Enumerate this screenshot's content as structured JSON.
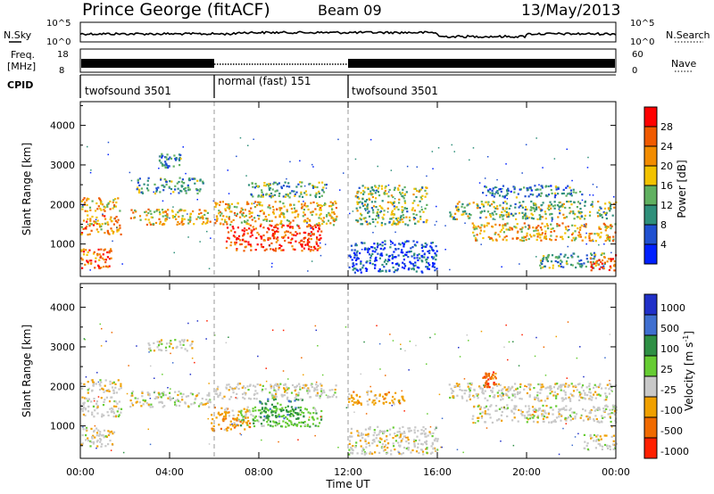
{
  "header": {
    "station": "Prince George (fitACF)",
    "beam": "Beam 09",
    "date": "13/May/2013"
  },
  "noise_panel": {
    "left_label": "N.Sky",
    "right_label": "N.Search",
    "left_ticks": [
      "10^5",
      "10^0"
    ],
    "right_ticks": [
      "10^5",
      "10^0"
    ]
  },
  "freq_panel": {
    "left_label_line1": "Freq.",
    "left_label_line2": "[MHz]",
    "right_label": "Nave",
    "left_ticks": [
      "18",
      "8"
    ],
    "right_ticks": [
      "60",
      "0"
    ]
  },
  "cpid": {
    "label": "CPID",
    "segments": [
      {
        "start_hour": 0,
        "end_hour": 6,
        "text": "twofsound 3501"
      },
      {
        "start_hour": 6,
        "end_hour": 12,
        "text": "normal (fast) 151"
      },
      {
        "start_hour": 12,
        "end_hour": 24,
        "text": "twofsound 3501"
      }
    ]
  },
  "time_axis": {
    "label": "Time UT",
    "range_hours": [
      0,
      24
    ],
    "ticks": [
      {
        "hour": 0,
        "label": "00:00"
      },
      {
        "hour": 4,
        "label": "04:00"
      },
      {
        "hour": 8,
        "label": "08:00"
      },
      {
        "hour": 12,
        "label": "12:00"
      },
      {
        "hour": 16,
        "label": "16:00"
      },
      {
        "hour": 20,
        "label": "20:00"
      },
      {
        "hour": 24,
        "label": "00:00"
      }
    ],
    "mode_change_markers_hours": [
      6,
      12
    ]
  },
  "chart_data": [
    {
      "type": "heatmap",
      "name": "power",
      "ylabel": "Slant Range [km]",
      "ylim": [
        180,
        4600
      ],
      "yticks": [
        1000,
        2000,
        3000,
        4000
      ],
      "colorbar": {
        "label": "Power [dB]",
        "range": [
          0,
          32
        ],
        "ticks": [
          "4",
          "8",
          "12",
          "16",
          "20",
          "24",
          "28"
        ],
        "colors": [
          "#0020ff",
          "#2050d0",
          "#2f8f7a",
          "#60b060",
          "#f2c200",
          "#f28c00",
          "#f05a00",
          "#ff0000"
        ]
      },
      "bands": [
        {
          "t0": 0,
          "t1": 1.8,
          "r0": 1850,
          "r1": 2200,
          "level": 0.62
        },
        {
          "t0": 0,
          "t1": 1.8,
          "r0": 1250,
          "r1": 1750,
          "level": 0.68
        },
        {
          "t0": 0,
          "t1": 1.5,
          "r0": 400,
          "r1": 900,
          "level": 0.8
        },
        {
          "t0": 2.2,
          "t1": 5.8,
          "r0": 1500,
          "r1": 1900,
          "level": 0.6
        },
        {
          "t0": 2.5,
          "t1": 5.5,
          "r0": 2300,
          "r1": 2700,
          "level": 0.35
        },
        {
          "t0": 3.5,
          "t1": 4.5,
          "r0": 2950,
          "r1": 3300,
          "level": 0.3
        },
        {
          "t0": 6.0,
          "t1": 11.5,
          "r0": 1500,
          "r1": 2100,
          "level": 0.6
        },
        {
          "t0": 6.5,
          "t1": 10.8,
          "r0": 850,
          "r1": 1500,
          "level": 0.85
        },
        {
          "t0": 7.5,
          "t1": 11.0,
          "r0": 2200,
          "r1": 2600,
          "level": 0.4
        },
        {
          "t0": 12.3,
          "t1": 15.5,
          "r0": 1500,
          "r1": 2500,
          "level": 0.45
        },
        {
          "t0": 12.0,
          "t1": 16.0,
          "r0": 300,
          "r1": 1100,
          "level": 0.15
        },
        {
          "t0": 16.5,
          "t1": 24,
          "r0": 1650,
          "r1": 2100,
          "level": 0.45
        },
        {
          "t0": 17.5,
          "t1": 24,
          "r0": 1100,
          "r1": 1550,
          "level": 0.62
        },
        {
          "t0": 18.0,
          "t1": 22.5,
          "r0": 2200,
          "r1": 2500,
          "level": 0.3
        },
        {
          "t0": 20.5,
          "t1": 23.5,
          "r0": 400,
          "r1": 800,
          "level": 0.35
        },
        {
          "t0": 22.8,
          "t1": 24,
          "r0": 350,
          "r1": 750,
          "level": 0.85
        }
      ]
    },
    {
      "type": "heatmap",
      "name": "velocity",
      "ylabel": "Slant Range [km]",
      "ylim": [
        180,
        4600
      ],
      "yticks": [
        1000,
        2000,
        3000,
        4000
      ],
      "colorbar": {
        "label": "Velocity [m s^-1]",
        "ticks": [
          "1000",
          "500",
          "100",
          "25",
          "-25",
          "-100",
          "-500",
          "-1000"
        ],
        "colors": [
          "#2030c8",
          "#3f6fd0",
          "#2e8f44",
          "#66cc33",
          "#c8c8c8",
          "#f0a000",
          "#f06a00",
          "#ff2000"
        ]
      },
      "bands": [
        {
          "t0": 0,
          "t1": 1.8,
          "r0": 1850,
          "r1": 2200,
          "level": 4
        },
        {
          "t0": 0,
          "t1": 1.8,
          "r0": 1250,
          "r1": 1750,
          "level": 4
        },
        {
          "t0": 0,
          "t1": 1.5,
          "r0": 500,
          "r1": 1000,
          "level": 4
        },
        {
          "t0": 2.2,
          "t1": 5.8,
          "r0": 1500,
          "r1": 1900,
          "level": 4
        },
        {
          "t0": 3.0,
          "t1": 5.0,
          "r0": 2900,
          "r1": 3200,
          "level": 4
        },
        {
          "t0": 7.0,
          "t1": 10.8,
          "r0": 1000,
          "r1": 1500,
          "level": 3
        },
        {
          "t0": 8.0,
          "t1": 10.0,
          "r0": 1200,
          "r1": 1700,
          "level": 2
        },
        {
          "t0": 5.8,
          "t1": 7.6,
          "r0": 900,
          "r1": 1500,
          "level": 5
        },
        {
          "t0": 6.0,
          "t1": 11.5,
          "r0": 1700,
          "r1": 2100,
          "level": 4
        },
        {
          "t0": 12.0,
          "t1": 14.5,
          "r0": 1550,
          "r1": 1900,
          "level": 5
        },
        {
          "t0": 12.0,
          "t1": 16.0,
          "r0": 300,
          "r1": 1000,
          "level": 4
        },
        {
          "t0": 16.5,
          "t1": 24,
          "r0": 1650,
          "r1": 2100,
          "level": 4
        },
        {
          "t0": 17.5,
          "t1": 24,
          "r0": 1100,
          "r1": 1550,
          "level": 4
        },
        {
          "t0": 18.0,
          "t1": 18.6,
          "r0": 2000,
          "r1": 2400,
          "level": 6
        },
        {
          "t0": 22.5,
          "t1": 24,
          "r0": 400,
          "r1": 800,
          "level": 4
        }
      ]
    }
  ]
}
